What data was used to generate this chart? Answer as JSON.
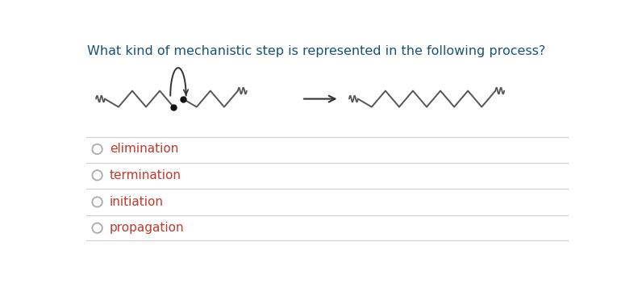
{
  "title": "What kind of mechanistic step is represented in the following process?",
  "title_color": "#1a5276",
  "title_fontsize": 11.5,
  "options": [
    "elimination",
    "termination",
    "initiation",
    "propagation"
  ],
  "option_color": "#c0392b",
  "option_fontsize": 11,
  "circle_color": "#aaaaaa",
  "line_color": "#cccccc",
  "background_color": "#ffffff",
  "chain_color": "#555555",
  "arrow_color": "#333333",
  "fig_width": 7.91,
  "fig_height": 3.67,
  "dpi": 100
}
